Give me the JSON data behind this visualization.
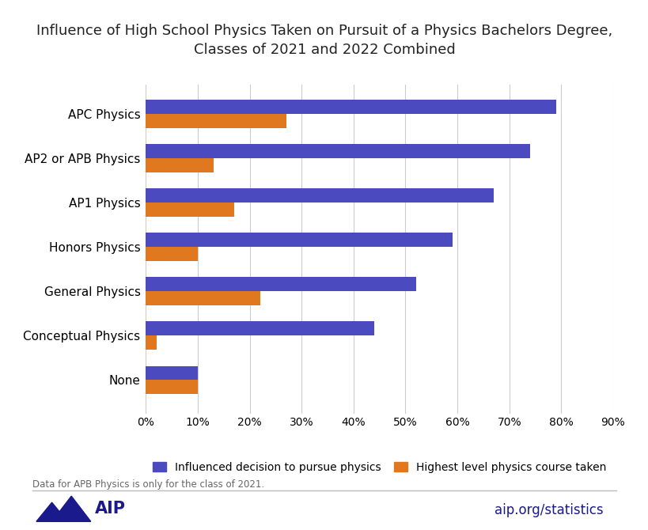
{
  "title_line1": "Influence of High School Physics Taken on Pursuit of a Physics Bachelors Degree,",
  "title_line2": "Classes of 2021 and 2022 Combined",
  "categories": [
    "None",
    "Conceptual Physics",
    "General Physics",
    "Honors Physics",
    "AP1 Physics",
    "AP2 or APB Physics",
    "APC Physics"
  ],
  "influenced": [
    10,
    44,
    52,
    59,
    67,
    74,
    79
  ],
  "highest_level": [
    10,
    2,
    22,
    10,
    17,
    13,
    27
  ],
  "color_influenced": "#4b4abf",
  "color_highest": "#e07820",
  "legend_influenced": "Influenced decision to pursue physics",
  "legend_highest": "Highest level physics course taken",
  "footnote": "Data for APB Physics is only for the class of 2021.",
  "xlim": [
    0,
    90
  ],
  "xtick_values": [
    0,
    10,
    20,
    30,
    40,
    50,
    60,
    70,
    80,
    90
  ],
  "xtick_labels": [
    "0%",
    "10%",
    "20%",
    "30%",
    "40%",
    "50%",
    "60%",
    "70%",
    "80%",
    "90%"
  ],
  "bar_height": 0.32,
  "background_color": "#ffffff",
  "aip_text": "aip.org/statistics",
  "title_fontsize": 13,
  "axis_fontsize": 10,
  "legend_fontsize": 10,
  "footnote_fontsize": 8.5,
  "category_fontsize": 11
}
